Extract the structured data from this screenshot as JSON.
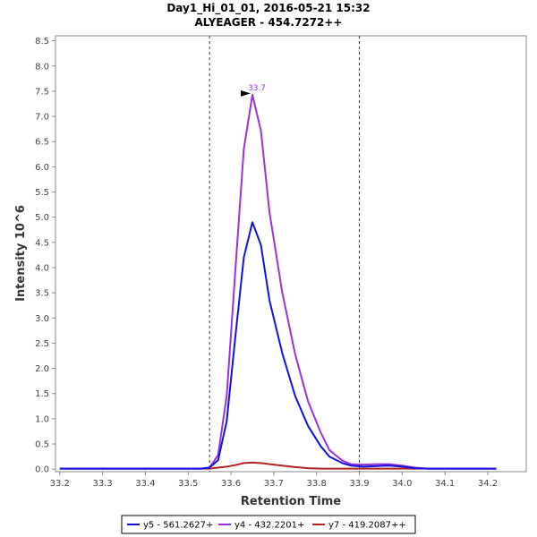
{
  "chart_data": {
    "type": "line",
    "title": "Day1_Hi_01_01, 2016-05-21 15:32",
    "subtitle": "ALYEAGER - 454.7272++",
    "xlabel": "Retention Time",
    "ylabel": "Intensity 10^6",
    "xlim": [
      33.19,
      34.29
    ],
    "ylim": [
      -0.05,
      8.6
    ],
    "x_ticks": [
      33.2,
      33.3,
      33.4,
      33.5,
      33.6,
      33.7,
      33.8,
      33.9,
      34.0,
      34.1,
      34.2
    ],
    "x_tick_labels": [
      "33.2",
      "33.3",
      "33.4",
      "33.5",
      "33.6",
      "33.7",
      "33.8",
      "33.9",
      "34.0",
      "34.1",
      "34.2"
    ],
    "y_ticks": [
      0,
      0.5,
      1,
      1.5,
      2,
      2.5,
      3,
      3.5,
      4,
      4.5,
      5,
      5.5,
      6,
      6.5,
      7,
      7.5,
      8,
      8.5
    ],
    "y_tick_labels": [
      "0.0",
      "0.5",
      "1.0",
      "1.5",
      "2.0",
      "2.5",
      "3.0",
      "3.5",
      "4.0",
      "4.5",
      "5.0",
      "5.5",
      "6.0",
      "6.5",
      "7.0",
      "7.5",
      "8.0",
      "8.5"
    ],
    "integration_bounds": [
      33.55,
      33.9
    ],
    "grid": false,
    "legend_position": "bottom",
    "x": [
      33.2,
      33.5,
      33.53,
      33.55,
      33.57,
      33.59,
      33.61,
      33.63,
      33.65,
      33.67,
      33.69,
      33.72,
      33.75,
      33.78,
      33.81,
      33.83,
      33.86,
      33.88,
      33.91,
      33.94,
      33.97,
      34.0,
      34.03,
      34.06,
      34.1,
      34.15,
      34.22
    ],
    "series": [
      {
        "name": "y5 - 561.2627+",
        "color": "#1010e0",
        "values": [
          0.01,
          0.01,
          0.01,
          0.03,
          0.18,
          0.95,
          2.6,
          4.2,
          4.9,
          4.45,
          3.35,
          2.3,
          1.45,
          0.86,
          0.45,
          0.25,
          0.12,
          0.07,
          0.05,
          0.06,
          0.07,
          0.05,
          0.02,
          0.01,
          0.01,
          0.01,
          0.01
        ]
      },
      {
        "name": "y4 - 432.2201+",
        "color": "#9932dd",
        "values": [
          0.01,
          0.01,
          0.01,
          0.03,
          0.28,
          1.45,
          3.9,
          6.35,
          7.43,
          6.72,
          5.1,
          3.5,
          2.28,
          1.35,
          0.72,
          0.38,
          0.17,
          0.1,
          0.09,
          0.1,
          0.1,
          0.07,
          0.03,
          0.01,
          0.01,
          0.01,
          0.01
        ]
      },
      {
        "name": "y7 - 419.2087++",
        "color": "#b22222",
        "values": [
          0.01,
          0.01,
          0.01,
          0.01,
          0.03,
          0.05,
          0.08,
          0.12,
          0.13,
          0.12,
          0.1,
          0.07,
          0.04,
          0.02,
          0.01,
          0.01,
          0.01,
          0.01,
          0.01,
          0.01,
          0.01,
          0.01,
          0.01,
          0.01,
          0.01,
          0.01,
          0.01
        ]
      }
    ],
    "annotations": [
      {
        "x": 33.65,
        "y": 7.43,
        "text": "33.7",
        "series": "y4 - 432.2201+"
      }
    ]
  }
}
